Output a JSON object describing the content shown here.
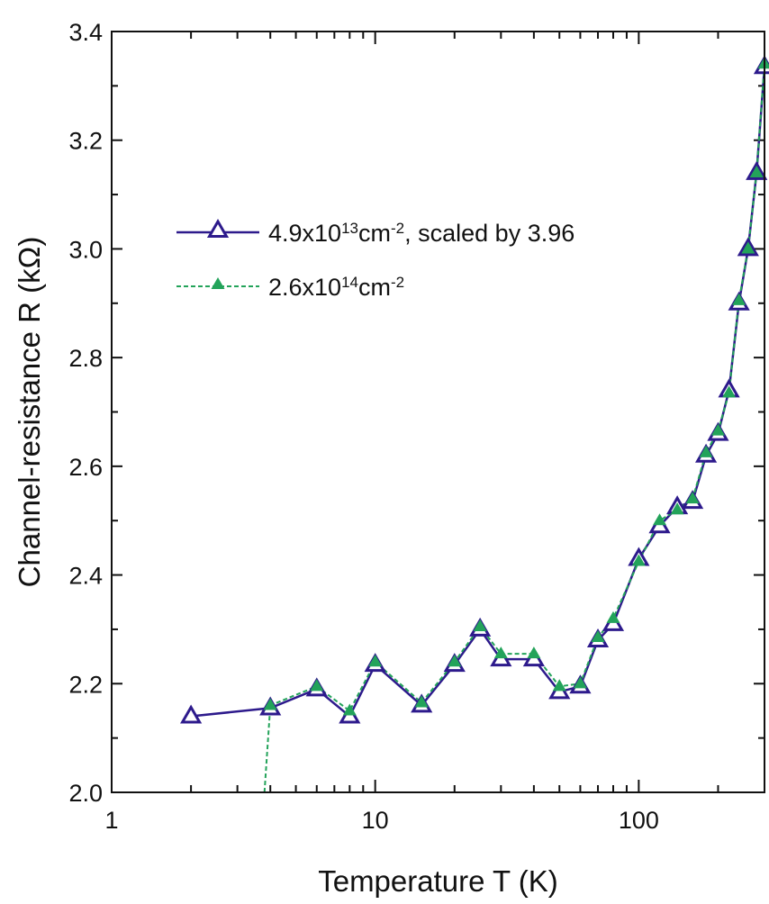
{
  "chart_data": {
    "type": "line",
    "x_scale": "log",
    "xlabel": "Temperature T (K)",
    "ylabel": "Channel-resistance R (kΩ)",
    "xlim": [
      1,
      300
    ],
    "ylim": [
      2.0,
      3.4
    ],
    "x_ticks": [
      {
        "value": 1,
        "label": "1"
      },
      {
        "value": 10,
        "label": "10"
      },
      {
        "value": 100,
        "label": "100"
      }
    ],
    "y_ticks": [
      {
        "value": 2.0,
        "label": "2.0"
      },
      {
        "value": 2.2,
        "label": "2.2"
      },
      {
        "value": 2.4,
        "label": "2.4"
      },
      {
        "value": 2.6,
        "label": "2.6"
      },
      {
        "value": 2.8,
        "label": "2.8"
      },
      {
        "value": 3.0,
        "label": "3.0"
      },
      {
        "value": 3.2,
        "label": "3.2"
      },
      {
        "value": 3.4,
        "label": "3.4"
      }
    ],
    "legend_position": "upper-left",
    "series": [
      {
        "name": "4.9x10^13cm^-2, scaled by 3.96",
        "legend": {
          "base": "4.9x10",
          "exp1": "13",
          "mid": "cm",
          "exp2": "-2",
          "tail": ", scaled by 3.96"
        },
        "color": "#2d1a8c",
        "marker": "open-triangle",
        "line_style": "solid",
        "x": [
          2,
          4,
          6,
          8,
          10,
          15,
          20,
          25,
          30,
          40,
          50,
          60,
          70,
          80,
          100,
          120,
          140,
          160,
          180,
          200,
          220,
          240,
          260,
          280,
          300
        ],
        "y": [
          2.14,
          2.155,
          2.19,
          2.14,
          2.235,
          2.16,
          2.235,
          2.3,
          2.245,
          2.245,
          2.185,
          2.195,
          2.28,
          2.31,
          2.43,
          2.49,
          2.525,
          2.535,
          2.62,
          2.66,
          2.74,
          2.9,
          3.0,
          3.14,
          3.335
        ]
      },
      {
        "name": "2.6x10^14cm^-2",
        "legend": {
          "base": "2.6x10",
          "exp1": "14",
          "mid": "cm",
          "exp2": "-2",
          "tail": ""
        },
        "color": "#23a35a",
        "marker": "filled-triangle",
        "line_style": "dashed",
        "x": [
          3.8,
          4,
          6,
          8,
          10,
          15,
          20,
          25,
          30,
          40,
          50,
          60,
          70,
          80,
          100,
          120,
          140,
          160,
          180,
          200,
          220,
          240,
          260,
          280,
          300
        ],
        "y": [
          2.0,
          2.16,
          2.195,
          2.15,
          2.24,
          2.165,
          2.24,
          2.305,
          2.255,
          2.255,
          2.195,
          2.2,
          2.285,
          2.32,
          2.425,
          2.5,
          2.52,
          2.54,
          2.625,
          2.665,
          2.735,
          2.905,
          3.0,
          3.14,
          3.34
        ]
      }
    ]
  }
}
